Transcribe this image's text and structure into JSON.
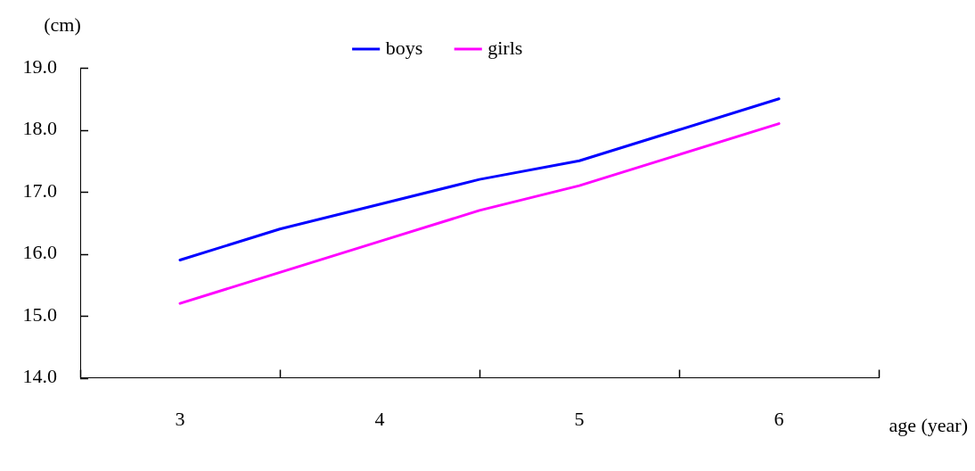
{
  "chart_data": {
    "type": "line",
    "ylabel": "(cm)",
    "xlabel": "age (year)",
    "x": [
      3,
      3.5,
      4,
      4.5,
      5,
      5.5,
      6
    ],
    "series": [
      {
        "name": "boys",
        "color": "#0000ff",
        "values": [
          15.9,
          16.4,
          16.8,
          17.2,
          17.5,
          18.0,
          18.5
        ]
      },
      {
        "name": "girls",
        "color": "#ff00ff",
        "values": [
          15.2,
          15.7,
          16.2,
          16.7,
          17.1,
          17.6,
          18.1
        ]
      }
    ],
    "xlim": [
      2.5,
      6.5
    ],
    "xticks": [
      {
        "value": 2.5,
        "label": null
      },
      3,
      {
        "value": 3.5,
        "label": null
      },
      4,
      {
        "value": 4.5,
        "label": null
      },
      5,
      {
        "value": 5.5,
        "label": null
      },
      6,
      {
        "value": 6.5,
        "label": null
      }
    ],
    "ylim": [
      14,
      19
    ],
    "yticks": [
      {
        "value": 14,
        "label": "14.0"
      },
      {
        "value": 15,
        "label": "15.0"
      },
      {
        "value": 16,
        "label": "16.0"
      },
      {
        "value": 17,
        "label": "17.0"
      },
      {
        "value": 18,
        "label": "18.0"
      },
      {
        "value": 19,
        "label": "19.0"
      }
    ],
    "grid": false,
    "legend": "top",
    "marker": "none",
    "line_style": "solid"
  }
}
